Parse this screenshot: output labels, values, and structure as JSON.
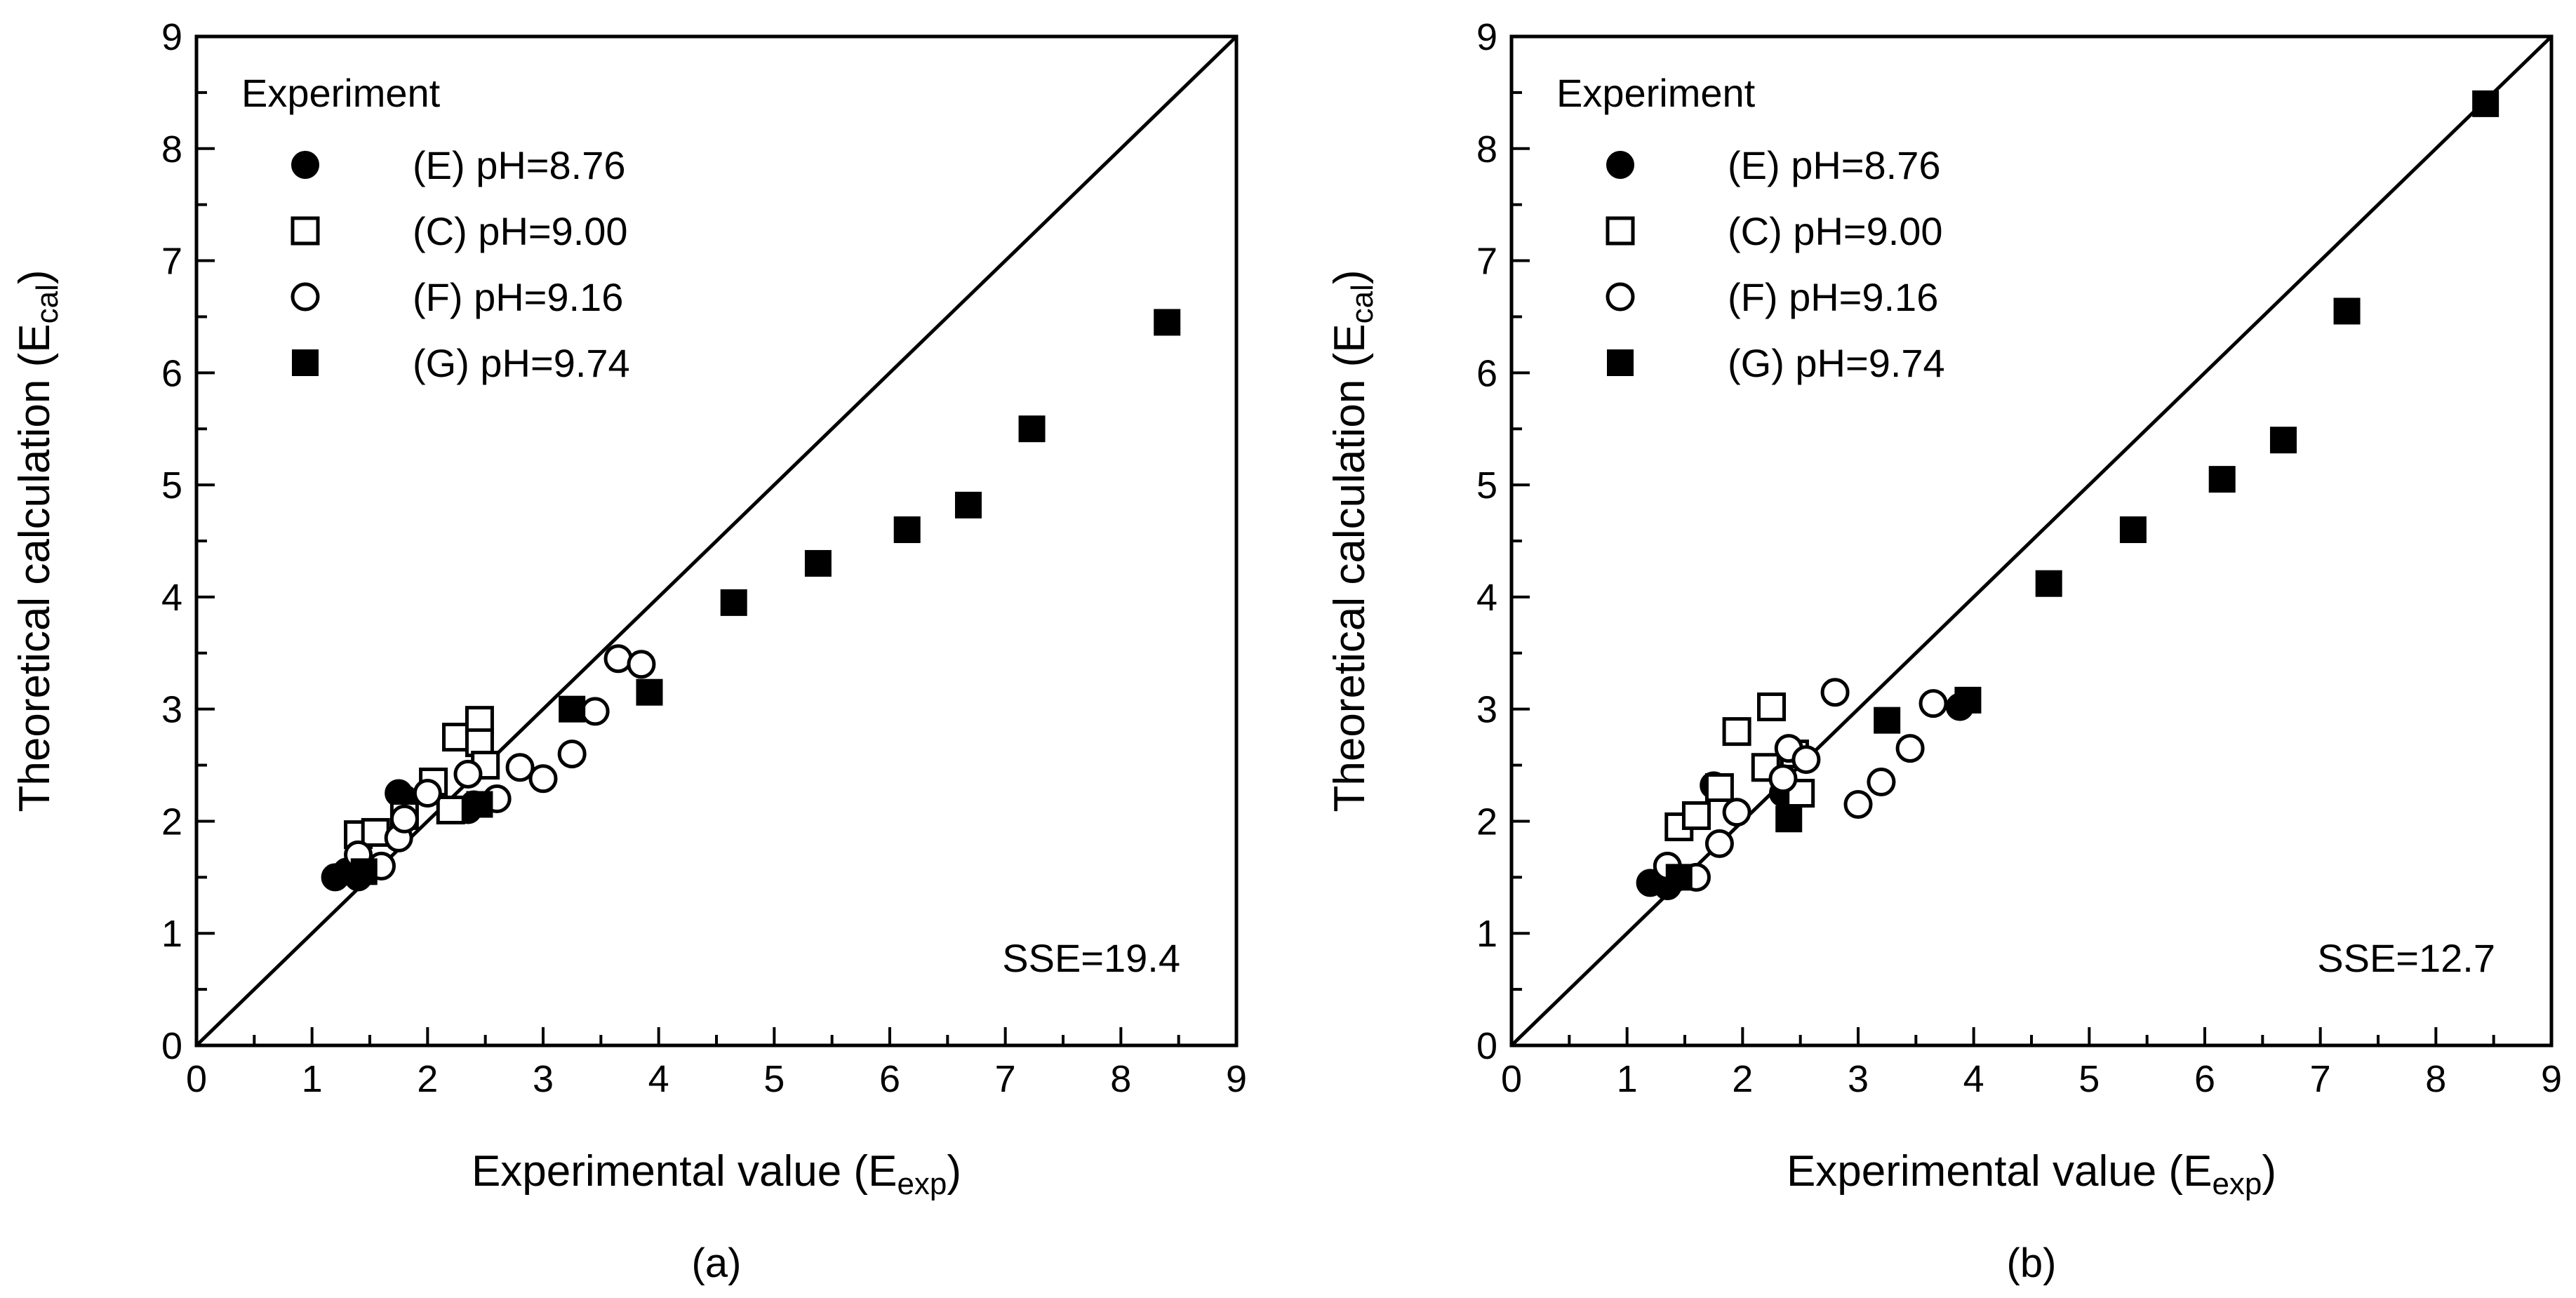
{
  "figure": {
    "chart_data": [
      {
        "type": "scatter",
        "panel_label": "(a)",
        "xlabel": {
          "main": "Experimental value (E",
          "sub": "exp",
          "close": ")"
        },
        "ylabel": {
          "main": "Theoretical calculation (E",
          "sub": "cal",
          "close": ")"
        },
        "xlim": [
          0,
          9
        ],
        "ylim": [
          0,
          9
        ],
        "xticks": [
          "0",
          "1",
          "2",
          "3",
          "4",
          "5",
          "6",
          "7",
          "8",
          "9"
        ],
        "yticks": [
          "0",
          "1",
          "2",
          "3",
          "4",
          "5",
          "6",
          "7",
          "8",
          "9"
        ],
        "grid": false,
        "reference_line": "y = x",
        "annotation": "SSE=19.4",
        "legend": {
          "title": "Experiment",
          "placement": "top-left"
        },
        "series": [
          {
            "name": "(E) pH=8.76",
            "marker": "filled-circle",
            "x": [
              1.2,
              1.3,
              1.4,
              1.75,
              1.8,
              2.35,
              2.4
            ],
            "y": [
              1.5,
              1.55,
              1.5,
              2.25,
              2.2,
              2.1,
              2.15
            ]
          },
          {
            "name": "(C) pH=9.00",
            "marker": "open-square",
            "x": [
              1.4,
              1.55,
              1.8,
              2.05,
              2.2,
              2.25,
              2.45,
              2.45,
              2.5
            ],
            "y": [
              1.88,
              1.9,
              2.05,
              2.35,
              2.1,
              2.75,
              2.9,
              2.7,
              2.5
            ]
          },
          {
            "name": "(F) pH=9.16",
            "marker": "open-circle",
            "x": [
              1.4,
              1.6,
              1.75,
              1.8,
              2.0,
              2.35,
              2.6,
              2.8,
              3.0,
              3.25,
              3.45,
              3.65,
              3.85
            ],
            "y": [
              1.7,
              1.6,
              1.85,
              2.02,
              2.25,
              2.42,
              2.2,
              2.48,
              2.38,
              2.6,
              2.98,
              3.45,
              3.4
            ]
          },
          {
            "name": "(G) pH=9.74",
            "marker": "filled-square",
            "x": [
              1.45,
              2.45,
              3.25,
              3.92,
              4.65,
              5.38,
              6.15,
              6.68,
              7.23,
              8.4
            ],
            "y": [
              1.55,
              2.15,
              3.0,
              3.15,
              3.95,
              4.3,
              4.6,
              4.82,
              5.5,
              6.45
            ]
          }
        ]
      },
      {
        "type": "scatter",
        "panel_label": "(b)",
        "xlabel": {
          "main": "Experimental value (E",
          "sub": "exp",
          "close": ")"
        },
        "ylabel": {
          "main": "Theoretical calculation (E",
          "sub": "cal",
          "close": ")"
        },
        "xlim": [
          0,
          9
        ],
        "ylim": [
          0,
          9
        ],
        "xticks": [
          "0",
          "1",
          "2",
          "3",
          "4",
          "5",
          "6",
          "7",
          "8",
          "9"
        ],
        "yticks": [
          "0",
          "1",
          "2",
          "3",
          "4",
          "5",
          "6",
          "7",
          "8",
          "9"
        ],
        "grid": false,
        "reference_line": "y = x",
        "annotation": "SSE=12.7",
        "legend": {
          "title": "Experiment",
          "placement": "top-left"
        },
        "series": [
          {
            "name": "(E) pH=8.76",
            "marker": "filled-circle",
            "x": [
              1.2,
              1.35,
              1.4,
              1.75,
              2.35,
              3.88
            ],
            "y": [
              1.45,
              1.42,
              1.48,
              2.32,
              2.25,
              3.02
            ]
          },
          {
            "name": "(C) pH=9.00",
            "marker": "open-square",
            "x": [
              1.45,
              1.6,
              1.8,
              1.95,
              2.2,
              2.25,
              2.45,
              2.5
            ],
            "y": [
              1.95,
              2.05,
              2.3,
              2.8,
              2.48,
              3.02,
              2.6,
              2.25
            ]
          },
          {
            "name": "(F) pH=9.16",
            "marker": "open-circle",
            "x": [
              1.35,
              1.6,
              1.8,
              1.95,
              2.35,
              2.4,
              2.55,
              2.8,
              3.0,
              3.2,
              3.45,
              3.65
            ],
            "y": [
              1.6,
              1.5,
              1.8,
              2.08,
              2.38,
              2.65,
              2.55,
              3.15,
              2.15,
              2.35,
              2.65,
              3.05
            ]
          },
          {
            "name": "(G) pH=9.74",
            "marker": "filled-square",
            "x": [
              1.45,
              2.4,
              3.25,
              3.95,
              4.65,
              5.38,
              6.15,
              6.68,
              7.23,
              8.43
            ],
            "y": [
              1.5,
              2.02,
              2.9,
              3.08,
              4.12,
              4.6,
              5.05,
              5.4,
              6.55,
              8.4
            ]
          }
        ]
      }
    ]
  }
}
